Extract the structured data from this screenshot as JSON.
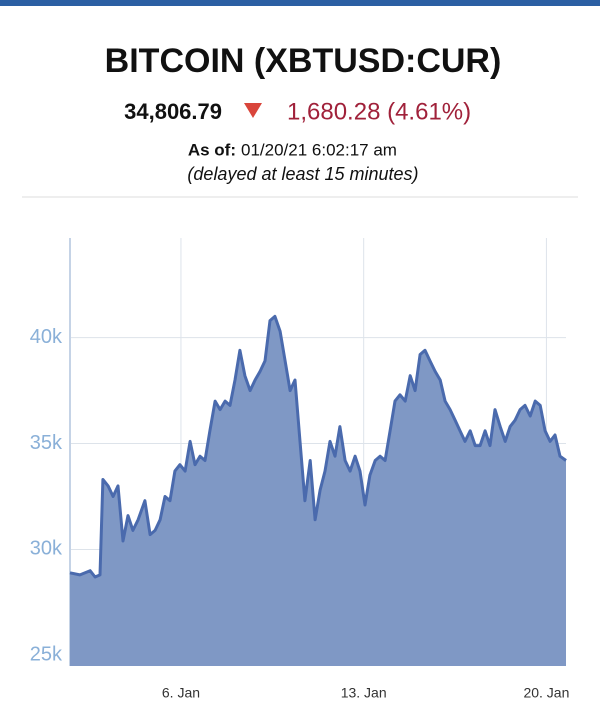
{
  "header": {
    "title": "BITCOIN (XBTUSD:CUR)",
    "price": "34,806.79",
    "change": "1,680.28 (4.61%)",
    "as_of_label": "As of:",
    "as_of_value": "01/20/21 6:02:17 am",
    "delay": "(delayed at least 15 minutes)"
  },
  "chart_data": {
    "type": "area",
    "color": "#4a6aad",
    "fill": "#7f98c5",
    "grid": true,
    "xlim": [
      1.75,
      20.75
    ],
    "xticks": [
      {
        "value": 6,
        "label": "6. Jan"
      },
      {
        "value": 13,
        "label": "13. Jan"
      },
      {
        "value": 20,
        "label": "20. Jan"
      }
    ],
    "ylim": [
      24500,
      44700
    ],
    "yticks": [
      {
        "value": 25000,
        "label": "25k"
      },
      {
        "value": 30000,
        "label": "30k"
      },
      {
        "value": 35000,
        "label": "35k"
      },
      {
        "value": 40000,
        "label": "40k"
      }
    ],
    "x": [
      1.75,
      2.13,
      2.52,
      2.71,
      2.9,
      3.01,
      3.21,
      3.4,
      3.59,
      3.78,
      3.97,
      4.16,
      4.36,
      4.62,
      4.82,
      5.01,
      5.2,
      5.39,
      5.58,
      5.77,
      5.96,
      6.16,
      6.35,
      6.54,
      6.73,
      6.92,
      7.11,
      7.31,
      7.5,
      7.69,
      7.88,
      8.07,
      8.26,
      8.45,
      8.65,
      8.84,
      9.03,
      9.22,
      9.41,
      9.6,
      9.8,
      9.99,
      10.18,
      10.37,
      10.56,
      10.75,
      10.95,
      11.14,
      11.33,
      11.52,
      11.71,
      11.9,
      12.09,
      12.29,
      12.48,
      12.67,
      12.86,
      13.05,
      13.24,
      13.44,
      13.63,
      13.82,
      14.01,
      14.2,
      14.39,
      14.59,
      14.78,
      14.97,
      15.16,
      15.35,
      15.54,
      15.74,
      15.93,
      16.12,
      16.31,
      16.5,
      16.69,
      16.88,
      17.08,
      17.27,
      17.46,
      17.65,
      17.84,
      18.03,
      18.23,
      18.42,
      18.61,
      18.8,
      18.99,
      19.18,
      19.38,
      19.57,
      19.76,
      19.95,
      20.14,
      20.33,
      20.52,
      20.75
    ],
    "values": [
      28900,
      28800,
      29000,
      28700,
      28800,
      33300,
      33000,
      32500,
      33000,
      30400,
      31600,
      30900,
      31400,
      32300,
      30700,
      30900,
      31400,
      32500,
      32300,
      33700,
      34000,
      33700,
      35100,
      34000,
      34400,
      34200,
      35600,
      37000,
      36600,
      37000,
      36800,
      38000,
      39400,
      38200,
      37500,
      38000,
      38400,
      38900,
      40800,
      41000,
      40300,
      38900,
      37500,
      38000,
      35100,
      32300,
      34200,
      31400,
      32800,
      33700,
      35100,
      34400,
      35800,
      34200,
      33700,
      34400,
      33700,
      32100,
      33500,
      34200,
      34400,
      34200,
      35600,
      37000,
      37300,
      37000,
      38200,
      37500,
      39200,
      39400,
      38900,
      38400,
      38000,
      37000,
      36600,
      36100,
      35600,
      35100,
      35600,
      34900,
      34900,
      35600,
      34900,
      36600,
      35800,
      35100,
      35800,
      36100,
      36600,
      36800,
      36300,
      37000,
      36800,
      35600,
      35100,
      35400,
      34400,
      34200
    ]
  }
}
